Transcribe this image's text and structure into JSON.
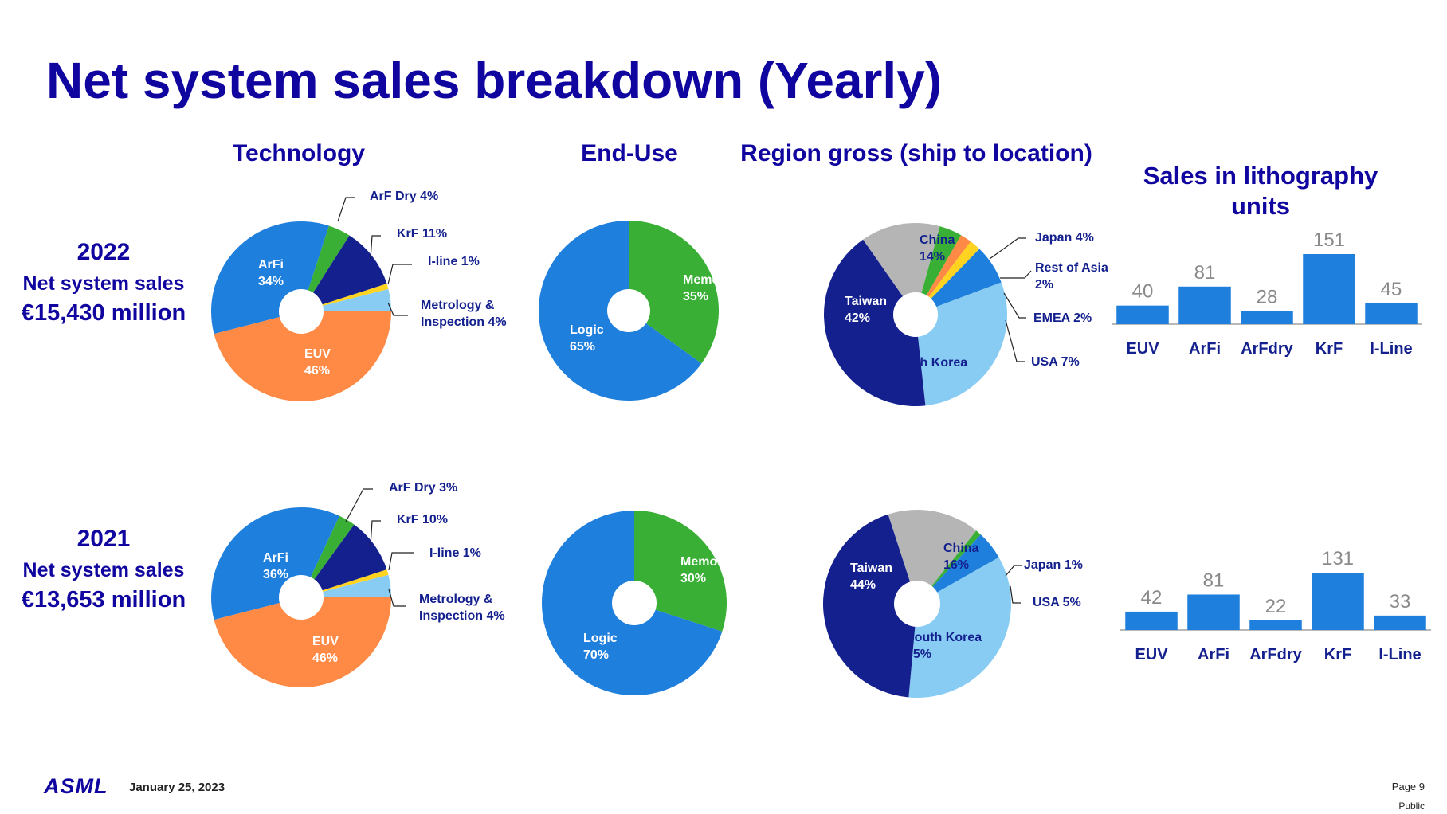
{
  "title": "Net system sales breakdown (Yearly)",
  "headers": {
    "technology": "Technology",
    "end_use": "End-Use",
    "region": "Region gross (ship to location)",
    "units_line1": "Sales in lithography",
    "units_line2": "units"
  },
  "years": [
    {
      "year": "2022",
      "label": "Net system sales",
      "amount": "€15,430 million"
    },
    {
      "year": "2021",
      "label": "Net system sales",
      "amount": "€13,653 million"
    }
  ],
  "footer": {
    "logo": "ASML",
    "date": "January 25, 2023",
    "page": "Page 9",
    "classification": "Public"
  },
  "colors": {
    "title": "#10069f",
    "euv": "#ff8a45",
    "arfi": "#1f7fdc",
    "arfdry": "#39b035",
    "krf": "#13208e",
    "iline": "#ffd320",
    "metrology": "#88ccf4",
    "memory": "#39b035",
    "logic": "#1f7fdc",
    "taiwan": "#13208e",
    "china": "#b5b5b5",
    "japan": "#39b035",
    "rest_of_asia": "#ff8a45",
    "emea": "#ffd320",
    "usa": "#1f7fdc",
    "south_korea": "#88ccf4",
    "bar": "#1f7fdc"
  },
  "chart_data": [
    {
      "id": "tech2022",
      "type": "pie",
      "title": "Technology",
      "year": "2022",
      "slices": [
        {
          "name": "EUV",
          "value": 46,
          "label": "EUV\n46%"
        },
        {
          "name": "ArFi",
          "value": 34,
          "label": "ArFi\n34%"
        },
        {
          "name": "ArF Dry",
          "value": 4,
          "label": "ArF Dry 4%"
        },
        {
          "name": "KrF",
          "value": 11,
          "label": "KrF 11%"
        },
        {
          "name": "I-line",
          "value": 1,
          "label": "I-line 1%"
        },
        {
          "name": "Metrology & Inspection",
          "value": 4,
          "label": "Metrology &\nInspection 4%"
        }
      ]
    },
    {
      "id": "enduse2022",
      "type": "pie",
      "title": "End-Use",
      "year": "2022",
      "slices": [
        {
          "name": "Memory",
          "value": 35,
          "label": "Memory\n35%"
        },
        {
          "name": "Logic",
          "value": 65,
          "label": "Logic\n65%"
        }
      ]
    },
    {
      "id": "region2022",
      "type": "pie",
      "title": "Region gross (ship to location)",
      "year": "2022",
      "slices": [
        {
          "name": "China",
          "value": 14,
          "label": "China\n14%"
        },
        {
          "name": "Japan",
          "value": 4,
          "label": "Japan 4%"
        },
        {
          "name": "Rest of Asia",
          "value": 2,
          "label": "Rest of Asia\n2%"
        },
        {
          "name": "EMEA",
          "value": 2,
          "label": "EMEA 2%"
        },
        {
          "name": "USA",
          "value": 7,
          "label": "USA 7%"
        },
        {
          "name": "South Korea",
          "value": 29,
          "label": "South Korea\n29%"
        },
        {
          "name": "Taiwan",
          "value": 42,
          "label": "Taiwan\n42%"
        }
      ]
    },
    {
      "id": "units2022",
      "type": "bar",
      "title": "Sales in lithography units",
      "year": "2022",
      "categories": [
        "EUV",
        "ArFi",
        "ArFdry",
        "KrF",
        "I-Line"
      ],
      "values": [
        40,
        81,
        28,
        151,
        45
      ]
    },
    {
      "id": "tech2021",
      "type": "pie",
      "title": "Technology",
      "year": "2021",
      "slices": [
        {
          "name": "EUV",
          "value": 46,
          "label": "EUV\n46%"
        },
        {
          "name": "ArFi",
          "value": 36,
          "label": "ArFi\n36%"
        },
        {
          "name": "ArF Dry",
          "value": 3,
          "label": "ArF Dry 3%"
        },
        {
          "name": "KrF",
          "value": 10,
          "label": "KrF 10%"
        },
        {
          "name": "I-line",
          "value": 1,
          "label": "I-line 1%"
        },
        {
          "name": "Metrology & Inspection",
          "value": 4,
          "label": "Metrology &\nInspection 4%"
        }
      ]
    },
    {
      "id": "enduse2021",
      "type": "pie",
      "title": "End-Use",
      "year": "2021",
      "slices": [
        {
          "name": "Memory",
          "value": 30,
          "label": "Memory\n30%"
        },
        {
          "name": "Logic",
          "value": 70,
          "label": "Logic\n70%"
        }
      ]
    },
    {
      "id": "region2021",
      "type": "pie",
      "title": "Region gross (ship to location)",
      "year": "2021",
      "slices": [
        {
          "name": "China",
          "value": 16,
          "label": "China\n16%"
        },
        {
          "name": "Japan",
          "value": 1,
          "label": "Japan 1%"
        },
        {
          "name": "USA",
          "value": 5,
          "label": "USA 5%"
        },
        {
          "name": "South Korea",
          "value": 35,
          "label": "South Korea\n35%"
        },
        {
          "name": "Taiwan",
          "value": 44,
          "label": "Taiwan\n44%"
        }
      ]
    },
    {
      "id": "units2021",
      "type": "bar",
      "title": "Sales in lithography units",
      "year": "2021",
      "categories": [
        "EUV",
        "ArFi",
        "ArFdry",
        "KrF",
        "I-Line"
      ],
      "values": [
        42,
        81,
        22,
        131,
        33
      ]
    }
  ]
}
